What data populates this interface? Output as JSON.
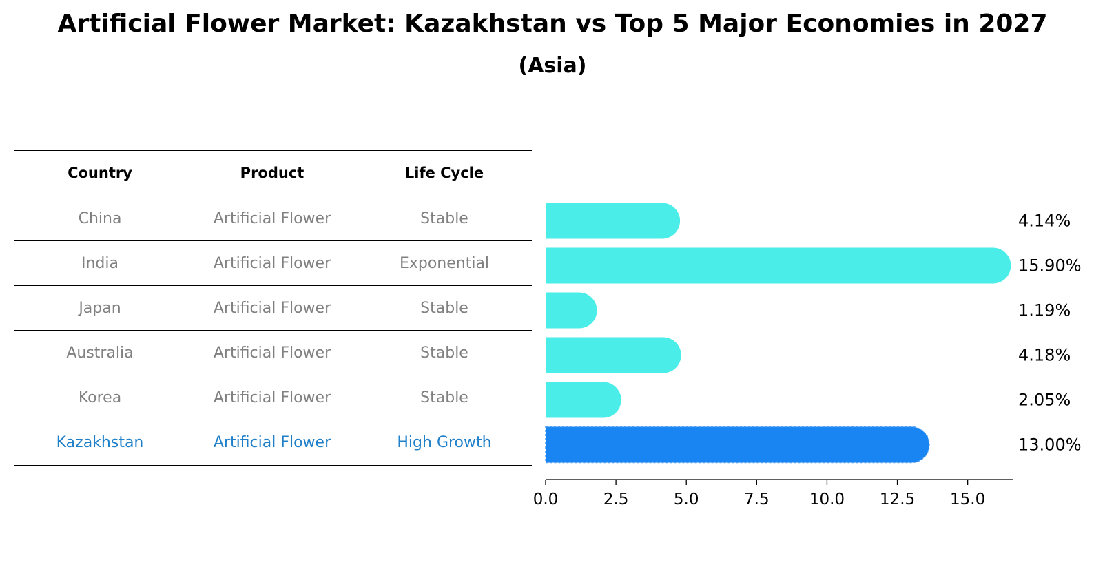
{
  "chart_data": {
    "type": "bar",
    "orientation": "horizontal",
    "title": "Artificial Flower Market: Kazakhstan vs Top 5 Major Economies in 2027",
    "subtitle": "(Asia)",
    "table": {
      "headers": [
        "Country",
        "Product",
        "Life Cycle"
      ],
      "rows": [
        [
          "China",
          "Artificial Flower",
          "Stable"
        ],
        [
          "India",
          "Artificial Flower",
          "Exponential"
        ],
        [
          "Japan",
          "Artificial Flower",
          "Stable"
        ],
        [
          "Australia",
          "Artificial Flower",
          "Stable"
        ],
        [
          "Korea",
          "Artificial Flower",
          "Stable"
        ],
        [
          "Kazakhstan",
          "Artificial Flower",
          "High Growth"
        ]
      ]
    },
    "categories": [
      "China",
      "India",
      "Japan",
      "Australia",
      "Korea",
      "Kazakhstan"
    ],
    "values": [
      4.14,
      15.9,
      1.19,
      4.18,
      2.05,
      13.0
    ],
    "value_labels": [
      "4.14%",
      "15.90%",
      "1.19%",
      "4.18%",
      "2.05%",
      "13.00%"
    ],
    "highlight": "Kazakhstan",
    "xlim": [
      0,
      16.6
    ],
    "xticks": [
      0,
      2.5,
      5,
      7.5,
      10,
      12.5,
      15
    ],
    "xtick_labels": [
      "0.0",
      "2.5",
      "5.0",
      "7.5",
      "10.0",
      "12.5",
      "15.0"
    ],
    "colors": {
      "default_bar": "#4AEDE8",
      "highlight_bar": "#1885F2",
      "default_text": "#808080",
      "highlight_text": "#1F80C9"
    }
  }
}
